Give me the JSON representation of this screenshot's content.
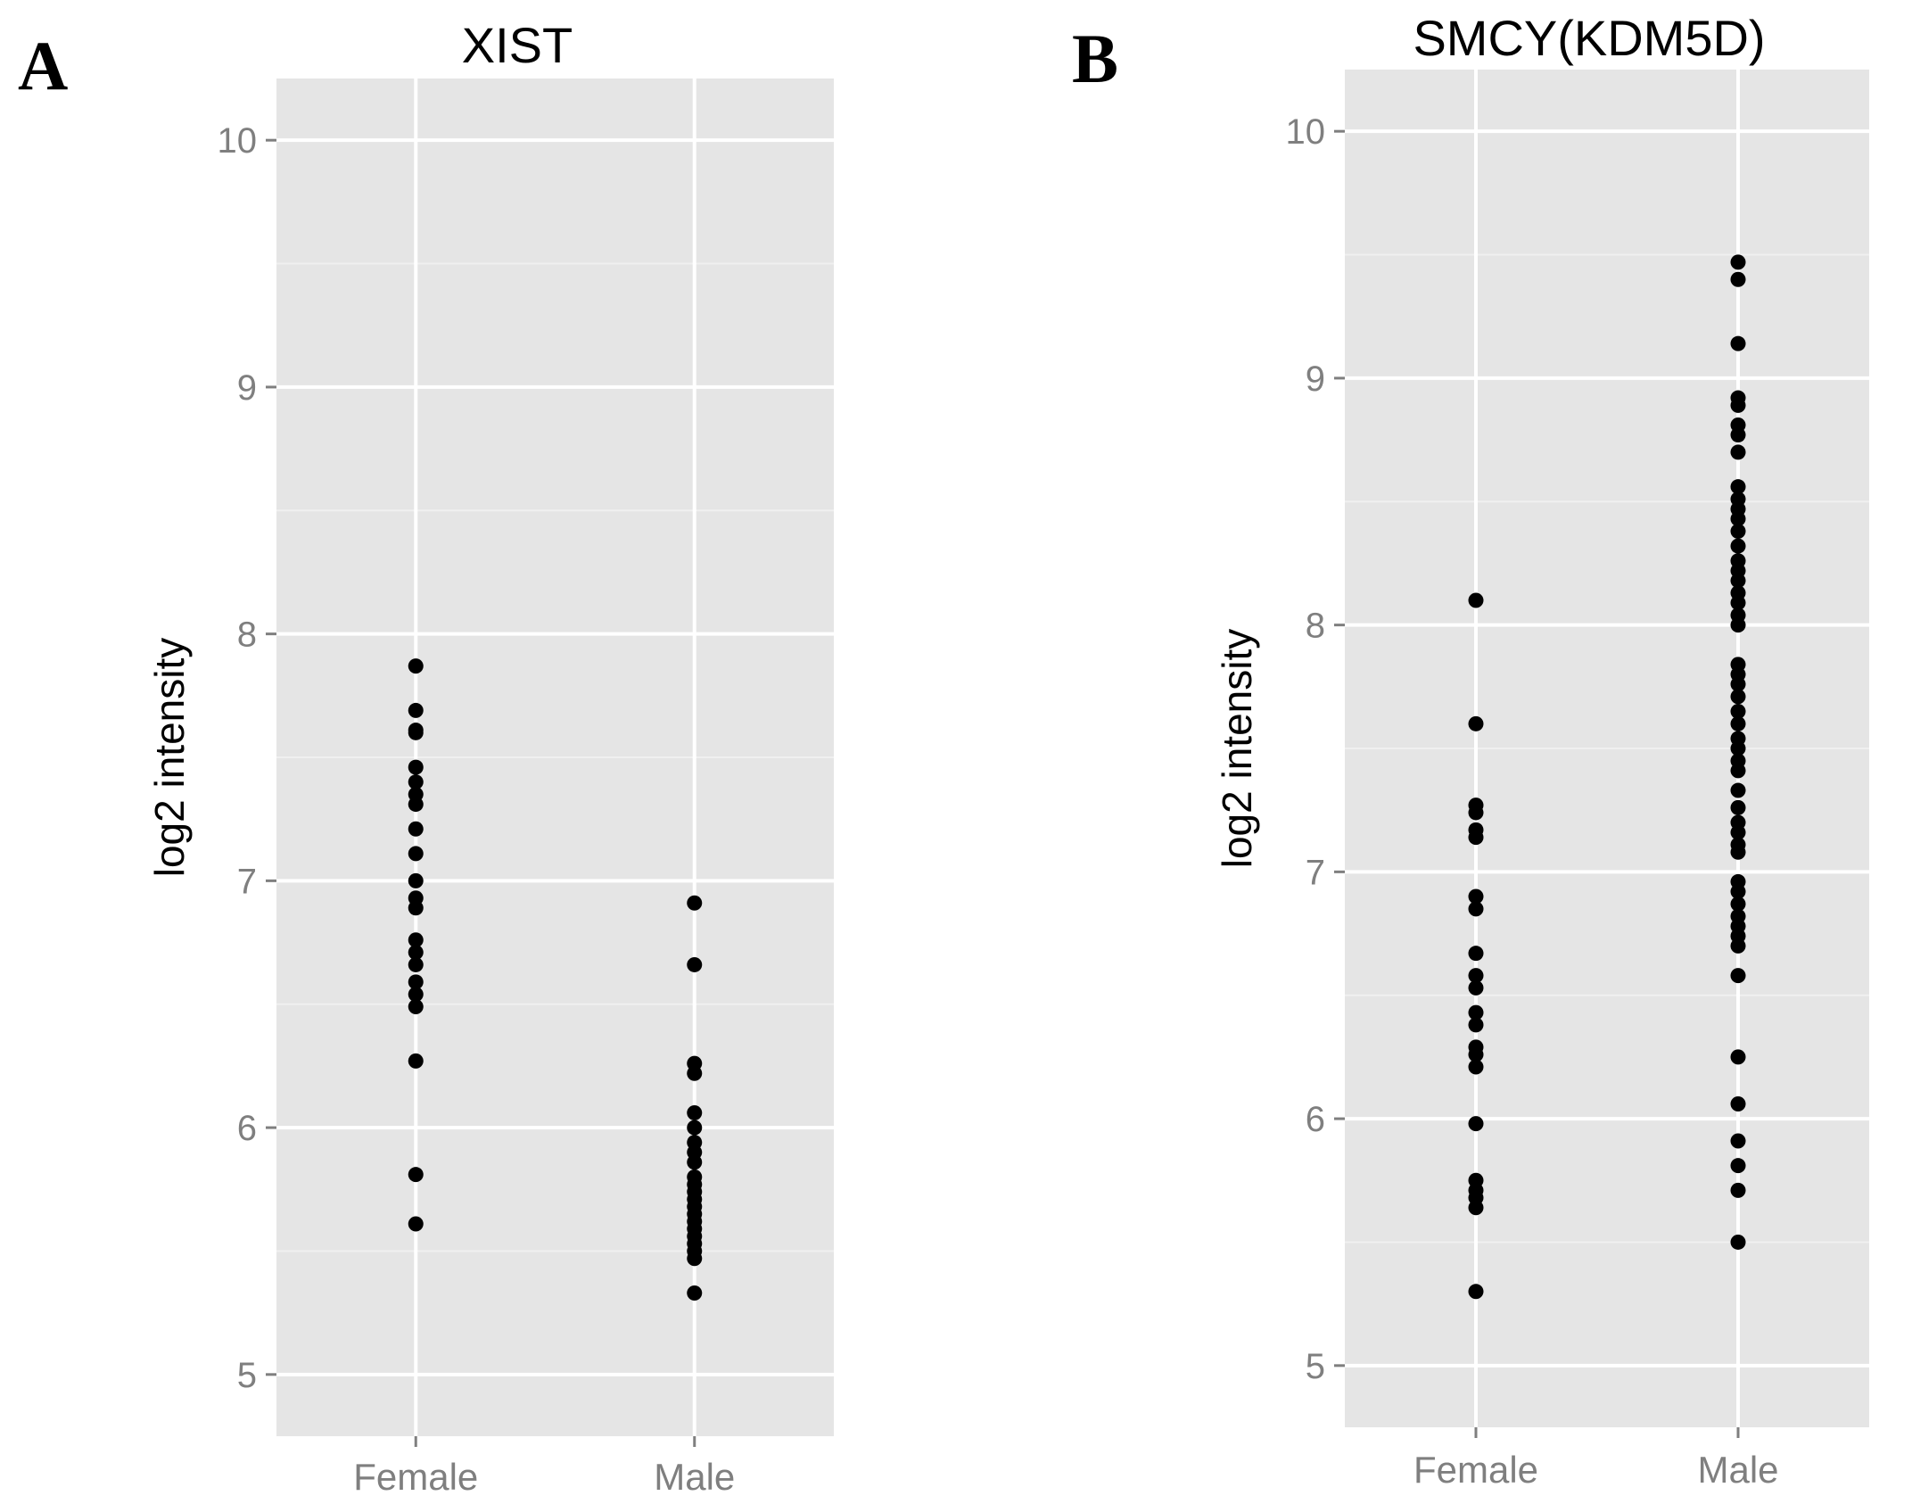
{
  "chart_data": [
    {
      "type": "scatter",
      "panel_label": "A",
      "title": "XIST",
      "xlabel": "",
      "ylabel": "log2 intensity",
      "categories": [
        "Female",
        "Male"
      ],
      "ylim": [
        4.75,
        10.25
      ],
      "yticks": [
        5,
        6,
        7,
        8,
        9,
        10
      ],
      "grid": true,
      "series": [
        {
          "name": "Female",
          "values": [
            7.87,
            7.69,
            7.61,
            7.6,
            7.46,
            7.4,
            7.35,
            7.31,
            7.21,
            7.11,
            7.0,
            6.93,
            6.89,
            6.76,
            6.71,
            6.66,
            6.59,
            6.54,
            6.49,
            6.27,
            5.81,
            5.61
          ]
        },
        {
          "name": "Male",
          "values": [
            6.91,
            6.66,
            6.26,
            6.22,
            6.06,
            6.0,
            5.94,
            5.9,
            5.86,
            5.8,
            5.77,
            5.74,
            5.71,
            5.68,
            5.65,
            5.62,
            5.59,
            5.56,
            5.53,
            5.5,
            5.47,
            5.33
          ]
        }
      ]
    },
    {
      "type": "scatter",
      "panel_label": "B",
      "title": "SMCY(KDM5D)",
      "xlabel": "",
      "ylabel": "log2 intensity",
      "categories": [
        "Female",
        "Male"
      ],
      "ylim": [
        4.75,
        10.25
      ],
      "yticks": [
        5,
        6,
        7,
        8,
        9,
        10
      ],
      "grid": true,
      "series": [
        {
          "name": "Female",
          "values": [
            8.1,
            7.6,
            7.27,
            7.24,
            7.17,
            7.14,
            6.9,
            6.85,
            6.67,
            6.58,
            6.53,
            6.43,
            6.38,
            6.29,
            6.26,
            6.21,
            5.98,
            5.75,
            5.71,
            5.68,
            5.64,
            5.3
          ]
        },
        {
          "name": "Male",
          "values": [
            9.47,
            9.4,
            9.14,
            8.92,
            8.89,
            8.81,
            8.77,
            8.7,
            8.56,
            8.51,
            8.47,
            8.43,
            8.38,
            8.32,
            8.26,
            8.22,
            8.18,
            8.13,
            8.09,
            8.04,
            8.0,
            7.84,
            7.8,
            7.76,
            7.71,
            7.65,
            7.6,
            7.54,
            7.5,
            7.45,
            7.41,
            7.33,
            7.26,
            7.2,
            7.16,
            7.11,
            7.08,
            6.96,
            6.92,
            6.87,
            6.82,
            6.78,
            6.74,
            6.7,
            6.58,
            6.25,
            6.06,
            5.91,
            5.81,
            5.71,
            5.5
          ]
        }
      ]
    }
  ]
}
